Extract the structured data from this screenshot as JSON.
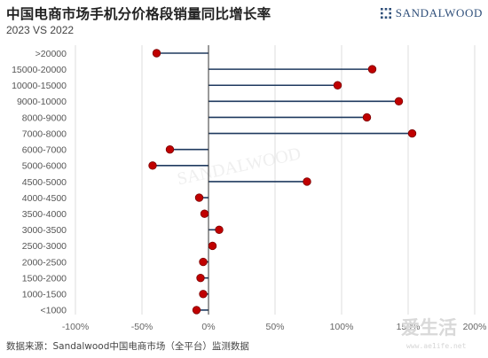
{
  "title": "中国电商市场手机分价格段销量同比增长率",
  "subtitle": "2023 VS 2022",
  "brand": {
    "name": "SANDALWOOD"
  },
  "source": "数据来源：Sandalwood中国电商市场（全平台）监测数据",
  "watermark": {
    "text": "爱生活",
    "url": "www.ae1ife.net"
  },
  "colors": {
    "stem": "#1f3a5f",
    "dot": "#c00000",
    "grid": "#dcdcdc",
    "zero_line": "#333333"
  },
  "chart_data": {
    "type": "lollipop",
    "orientation": "horizontal",
    "categories": [
      ">20000",
      "15000-20000",
      "10000-15000",
      "9000-10000",
      "8000-9000",
      "7000-8000",
      "6000-7000",
      "5000-6000",
      "4500-5000",
      "4000-4500",
      "3500-4000",
      "3000-3500",
      "2500-3000",
      "2000-2500",
      "1500-2000",
      "1000-1500",
      "<1000"
    ],
    "values": [
      -39,
      123,
      97,
      143,
      119,
      153,
      -29,
      -42,
      74,
      -7,
      -3,
      8,
      3,
      -4,
      -6,
      -4,
      -9
    ],
    "x_ticks": [
      "-100%",
      "-50%",
      "0%",
      "50%",
      "100%",
      "150%",
      "200%"
    ],
    "xlim": [
      -100,
      200
    ],
    "unit": "%",
    "grid": "vertical"
  }
}
